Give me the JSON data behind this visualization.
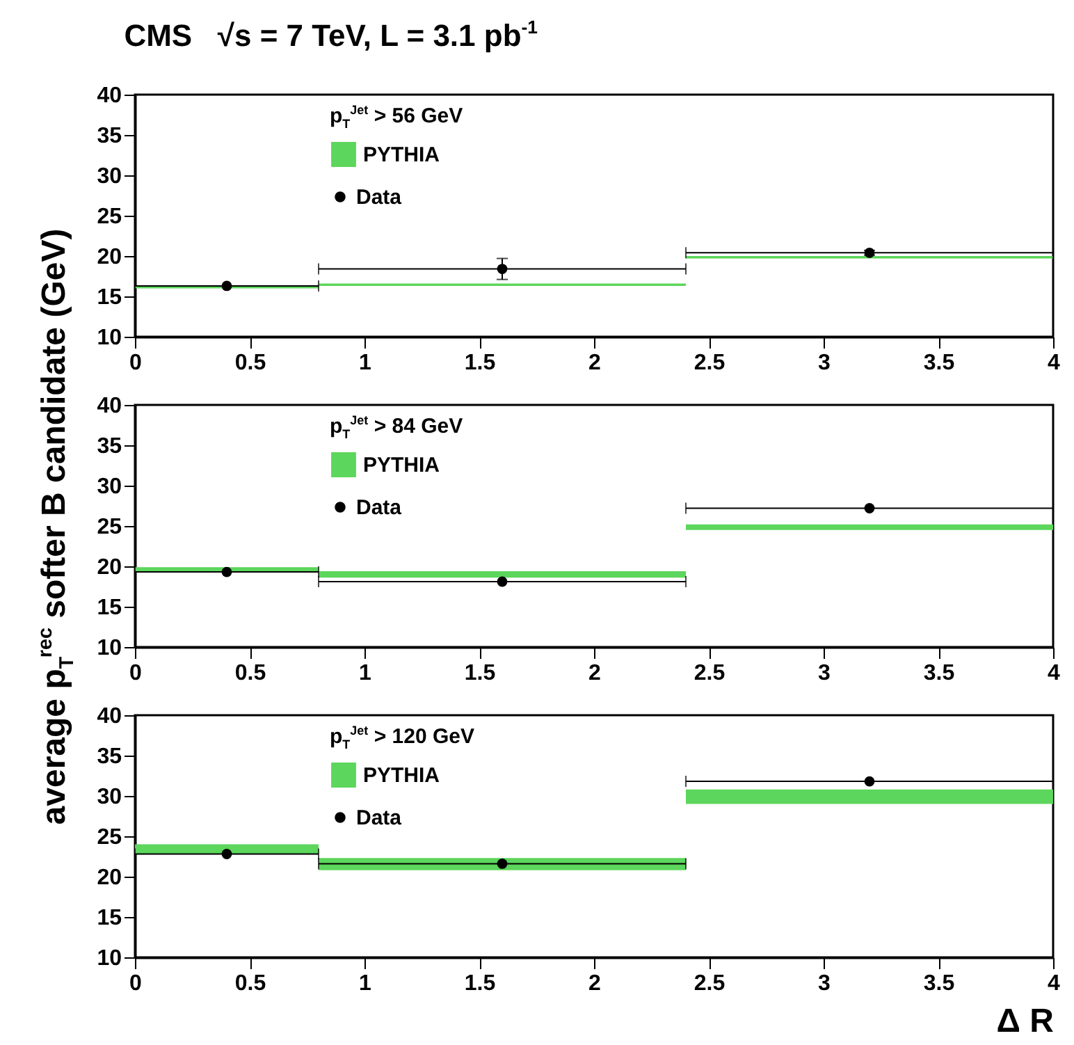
{
  "chart_data": [
    {
      "type": "scatter",
      "title": "CMS   √s = 7 TeV, L = 3.1 pb$^{-1}$",
      "legend_title": "p$_{T}$$^{Jet}$ > 56 GeV",
      "xlim": [
        0,
        4
      ],
      "xticks": [
        0,
        0.5,
        1,
        1.5,
        2,
        2.5,
        3,
        3.5,
        4
      ],
      "ylim": [
        10,
        40
      ],
      "yticks": [
        10,
        15,
        20,
        25,
        30,
        35,
        40
      ],
      "legend": "top left",
      "series": [
        {
          "name": "PYTHIA",
          "type": "histogram",
          "color": "#5cd65c",
          "bins": [
            0,
            0.8,
            2.4,
            4
          ],
          "base": [
            16.0,
            16.3,
            19.7
          ],
          "values": [
            0.3,
            0.3,
            0.3
          ]
        },
        {
          "name": "Data",
          "color": "#000000",
          "marker": "circle",
          "x": [
            0.4,
            1.6,
            3.2
          ],
          "xerrors": [
            0.4,
            0.8,
            0.8
          ],
          "values": [
            16.3,
            18.4,
            20.4
          ],
          "errors": [
            null,
            1.3,
            0.3
          ]
        }
      ]
    },
    {
      "type": "scatter",
      "ylabel": "average p$_{T}$$^{rec}$ softer B candidate (GeV)",
      "legend_title": "p$_{T}$$^{Jet}$ > 84 GeV",
      "xlim": [
        0,
        4
      ],
      "xticks": [
        0,
        0.5,
        1,
        1.5,
        2,
        2.5,
        3,
        3.5,
        4
      ],
      "ylim": [
        10,
        40
      ],
      "yticks": [
        10,
        15,
        20,
        25,
        30,
        35,
        40
      ],
      "legend": "top left",
      "series": [
        {
          "name": "PYTHIA",
          "type": "histogram",
          "color": "#5cd65c",
          "bins": [
            0,
            0.8,
            2.4,
            4
          ],
          "base": [
            19.3,
            18.6,
            24.5
          ],
          "values": [
            0.6,
            0.8,
            0.7
          ]
        },
        {
          "name": "Data",
          "color": "#000000",
          "marker": "circle",
          "x": [
            0.4,
            1.6,
            3.2
          ],
          "xerrors": [
            0.4,
            0.8,
            0.8
          ],
          "values": [
            19.3,
            18.1,
            27.2
          ]
        }
      ]
    },
    {
      "type": "scatter",
      "xlabel": "Δ R",
      "legend_title": "p$_{T}$$^{Jet}$ > 120 GeV",
      "xlim": [
        0,
        4
      ],
      "xticks": [
        0,
        0.5,
        1,
        1.5,
        2,
        2.5,
        3,
        3.5,
        4
      ],
      "ylim": [
        10,
        40
      ],
      "yticks": [
        10,
        15,
        20,
        25,
        30,
        35,
        40
      ],
      "legend": "top left",
      "series": [
        {
          "name": "PYTHIA",
          "type": "histogram",
          "color": "#5cd65c",
          "bins": [
            0,
            0.8,
            2.4,
            4
          ],
          "base": [
            22.8,
            20.8,
            29.0
          ],
          "values": [
            1.2,
            1.5,
            1.8
          ]
        },
        {
          "name": "Data",
          "color": "#000000",
          "marker": "circle",
          "x": [
            0.4,
            1.6,
            3.2
          ],
          "xerrors": [
            0.4,
            0.8,
            0.8
          ],
          "values": [
            22.8,
            21.6,
            31.8
          ]
        }
      ]
    }
  ]
}
